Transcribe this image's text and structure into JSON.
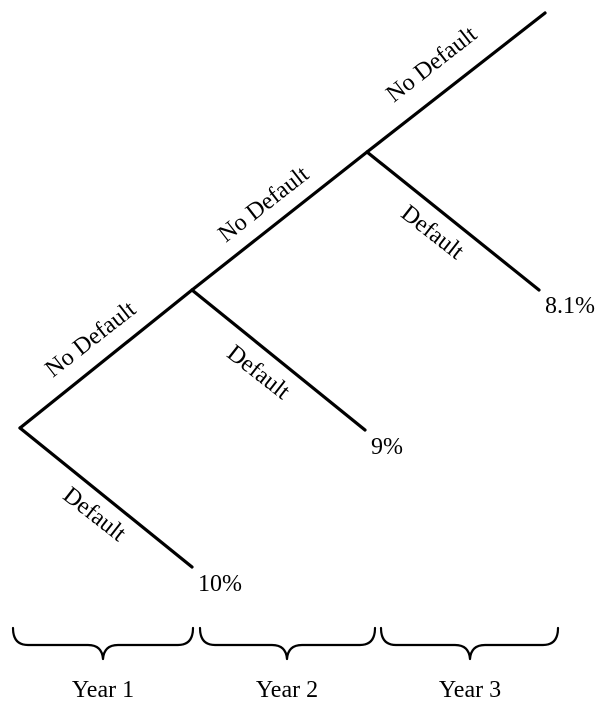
{
  "tree": {
    "branches": {
      "no_default_1": "No Default",
      "default_1": "Default",
      "no_default_2": "No Default",
      "default_2": "Default",
      "no_default_3": "No Default",
      "default_3": "Default"
    },
    "outcomes": {
      "year1": "10%",
      "year2": "9%",
      "year3": "8.1%"
    }
  },
  "timeline": {
    "year1": "Year 1",
    "year2": "Year 2",
    "year3": "Year 3"
  }
}
